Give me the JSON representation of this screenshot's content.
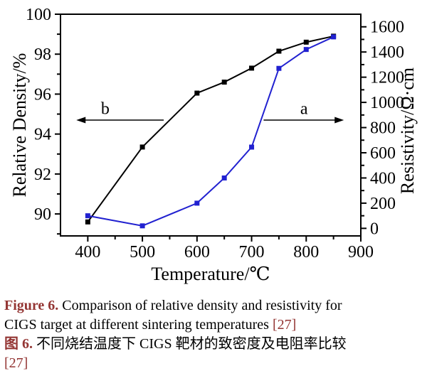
{
  "figure": {
    "caption": {
      "accent_color": "#943634",
      "line1_label": "Figure 6.",
      "line1_text": " Comparison of relative density and resistivity for",
      "line2_text": "CIGS target at different sintering temperatures ",
      "line2_ref": "[27]",
      "line3_label": "图 6.",
      "line3_text": " 不同烧结温度下 CIGS 靶材的致密度及电阻率比较",
      "line4_ref": "[27]"
    }
  },
  "chart_data": {
    "type": "line",
    "title": "",
    "xlabel": "Temperature/℃",
    "ylabel_left": "Relative Density/%",
    "ylabel_right": "Resistivity/Ω·cm",
    "grid": false,
    "legend_position": "none",
    "xlim": [
      350,
      900
    ],
    "x_major_ticks": [
      400,
      500,
      600,
      700,
      800,
      900
    ],
    "x_minor_step": 50,
    "ylim_left": [
      88.9,
      100
    ],
    "y_left_major_ticks": [
      90,
      92,
      94,
      96,
      98,
      100
    ],
    "y_left_minor_step": 1,
    "ylim_right": [
      -60,
      1700
    ],
    "y_right_major_ticks": [
      0,
      200,
      400,
      600,
      800,
      1000,
      1200,
      1400,
      1600
    ],
    "y_right_minor_step": 100,
    "series": [
      {
        "name": "b",
        "quantity": "Relative Density/%",
        "axis": "left",
        "color": "#000000",
        "marker": "square",
        "x": [
          400,
          500,
          600,
          650,
          700,
          750,
          800,
          850
        ],
        "y": [
          89.6,
          93.35,
          96.05,
          96.6,
          97.3,
          98.15,
          98.6,
          98.9
        ]
      },
      {
        "name": "a",
        "quantity": "Resistivity/Ω·cm",
        "axis": "right",
        "color": "#2121d0",
        "marker": "square",
        "x": [
          400,
          500,
          600,
          650,
          700,
          750,
          800,
          850
        ],
        "y": [
          100,
          20,
          200,
          400,
          645,
          1270,
          1420,
          1520
        ]
      }
    ],
    "annotations": [
      {
        "label": "b",
        "arrow_y_left_axis": 94.7,
        "x_from": 539,
        "x_to": 379,
        "direction": "left",
        "label_x": 432,
        "label_y_left_axis": 95.0
      },
      {
        "label": "a",
        "arrow_y_left_axis": 94.7,
        "x_from": 722,
        "x_to": 869,
        "direction": "right",
        "label_x": 796,
        "label_y_left_axis": 95.0
      }
    ]
  }
}
